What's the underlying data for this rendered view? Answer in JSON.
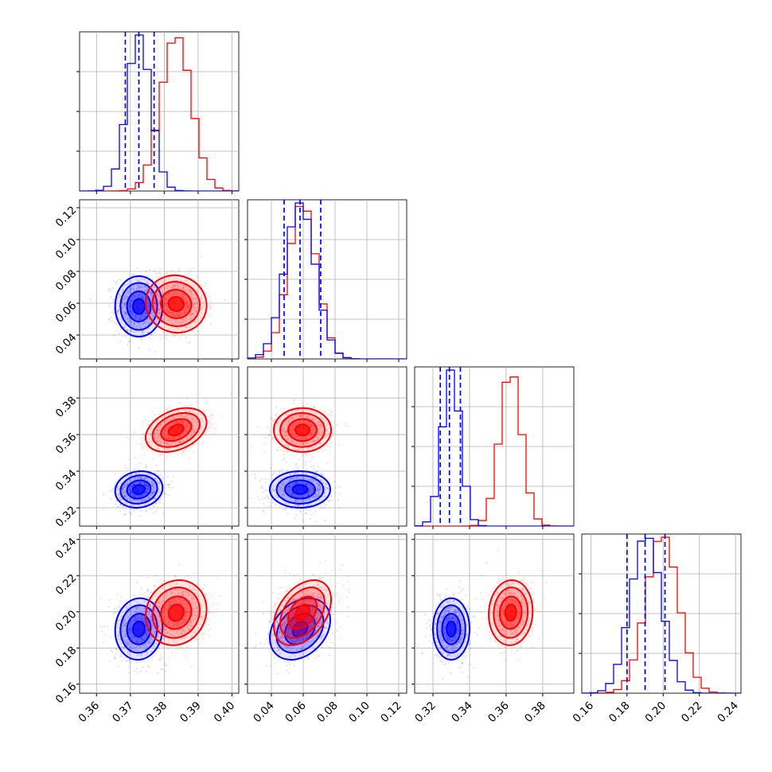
{
  "chart_data": {
    "type": "corner",
    "colors": {
      "series_a": "#0000ff",
      "series_b": "#ff0000",
      "quantile_line": "#0000ff"
    },
    "grid": true,
    "parameters": [
      {
        "range": [
          0.355,
          0.402
        ],
        "ticks": [
          0.36,
          0.37,
          0.38,
          0.39,
          0.4
        ],
        "tick_labels": [
          "0.36",
          "0.37",
          "0.38",
          "0.39",
          "0.40"
        ]
      },
      {
        "range": [
          0.025,
          0.125
        ],
        "ticks": [
          0.04,
          0.06,
          0.08,
          0.1,
          0.12
        ],
        "tick_labels": [
          "0.04",
          "0.06",
          "0.08",
          "0.10",
          "0.12"
        ]
      },
      {
        "range": [
          0.31,
          0.397
        ],
        "ticks": [
          0.32,
          0.34,
          0.36,
          0.38
        ],
        "tick_labels": [
          "0.32",
          "0.34",
          "0.36",
          "0.38"
        ]
      },
      {
        "range": [
          0.155,
          0.243
        ],
        "ticks": [
          0.16,
          0.18,
          0.2,
          0.22,
          0.24
        ],
        "tick_labels": [
          "0.16",
          "0.18",
          "0.20",
          "0.22",
          "0.24"
        ]
      }
    ],
    "series": [
      {
        "color": "#0000ff",
        "mean": [
          0.3725,
          0.058,
          0.33,
          0.1905
        ],
        "sd": [
          0.0035,
          0.0095,
          0.005,
          0.0085
        ],
        "corr": [
          [
            1,
            0,
            0.1,
            0.05
          ],
          [
            0,
            1,
            0,
            0.3
          ],
          [
            0.1,
            0,
            1,
            0
          ],
          [
            0.05,
            0.3,
            0,
            1
          ]
        ],
        "quantiles": [
          [
            0.3685,
            0.3725,
            0.377
          ],
          [
            0.048,
            0.058,
            0.071
          ],
          [
            0.324,
            0.329,
            0.335
          ],
          [
            0.18,
            0.19,
            0.201
          ]
        ]
      },
      {
        "color": "#ff0000",
        "mean": [
          0.3835,
          0.0595,
          0.3625,
          0.1995
        ],
        "sd": [
          0.0045,
          0.009,
          0.006,
          0.009
        ],
        "corr": [
          [
            1,
            -0.05,
            0.35,
            0.1
          ],
          [
            -0.05,
            1,
            0,
            0.4
          ],
          [
            0.35,
            0,
            1,
            0.05
          ],
          [
            0.1,
            0.4,
            0.05,
            1
          ]
        ],
        "quantiles": []
      }
    ]
  }
}
